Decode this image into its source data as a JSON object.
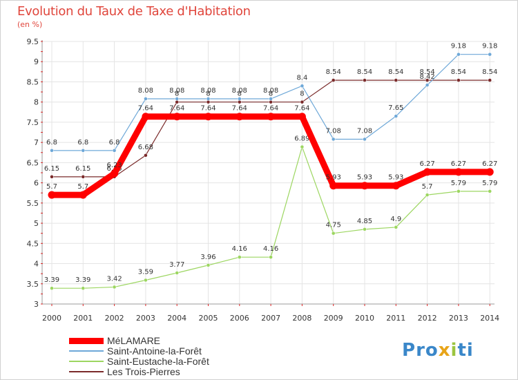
{
  "title": "Evolution du Taux de Taxe d'Habitation",
  "unit": "(en %)",
  "logo": {
    "letters": [
      "P",
      "r",
      "o",
      "x",
      "i",
      "t",
      "i"
    ],
    "colors": [
      "#3a87c9",
      "#3a87c9",
      "#3a87c9",
      "#e8a418",
      "#9cc540",
      "#3a87c9",
      "#3a87c9"
    ]
  },
  "chart_data": {
    "type": "line",
    "x": [
      "2000",
      "2001",
      "2002",
      "2003",
      "2004",
      "2005",
      "2006",
      "2007",
      "2008",
      "2009",
      "2010",
      "2011",
      "2012",
      "2013",
      "2014"
    ],
    "ylim": [
      3,
      9.5
    ],
    "yticks": [
      "3",
      "3.5",
      "4",
      "4.5",
      "5",
      "5.5",
      "6",
      "6.5",
      "7",
      "7.5",
      "8",
      "8.5",
      "9",
      "9.5"
    ],
    "grid": true,
    "legend_position": "bottom-left",
    "series": [
      {
        "name": "Les Trois-Pierres",
        "color": "#7a2a2a",
        "width": 1.2,
        "marker": 5,
        "values": [
          6.15,
          6.15,
          6.15,
          6.68,
          8,
          8,
          8,
          8,
          8,
          8.54,
          8.54,
          8.54,
          8.54,
          8.54,
          8.54
        ],
        "labels": [
          "6.15",
          "6.15",
          "6.15",
          "6.68",
          "8",
          "8",
          "8",
          "8",
          "8",
          "8.54",
          "8.54",
          "8.54",
          "8.54",
          "8.54",
          "8.54"
        ]
      },
      {
        "name": "Saint-Eustache-la-Forêt",
        "color": "#9cd660",
        "width": 1.2,
        "marker": 5,
        "values": [
          3.39,
          3.39,
          3.42,
          3.59,
          3.77,
          3.96,
          4.16,
          4.16,
          6.89,
          4.75,
          4.85,
          4.9,
          5.7,
          5.79,
          5.79
        ],
        "labels": [
          "3.39",
          "3.39",
          "3.42",
          "3.59",
          "3.77",
          "3.96",
          "4.16",
          "4.16",
          "6.89",
          "4.75",
          "4.85",
          "4.9",
          "5.7",
          "5.79",
          "5.79"
        ]
      },
      {
        "name": "Saint-Antoine-la-Forêt",
        "color": "#6ea8d8",
        "width": 1.2,
        "marker": 5,
        "values": [
          6.8,
          6.8,
          6.8,
          8.08,
          8.08,
          8.08,
          8.08,
          8.08,
          8.4,
          7.08,
          7.08,
          7.65,
          8.42,
          9.18,
          9.18
        ],
        "labels": [
          "6.8",
          "6.8",
          "6.8",
          "8.08",
          "8.08",
          "8.08",
          "8.08",
          "8.08",
          "8.4",
          "7.08",
          "7.08",
          "7.65",
          "8.42",
          "9.18",
          "9.18"
        ]
      },
      {
        "name": "MéLAMARE",
        "color": "#ff0000",
        "width": 9,
        "marker": 9,
        "values": [
          5.7,
          5.7,
          6.23,
          7.64,
          7.64,
          7.64,
          7.64,
          7.64,
          7.64,
          5.93,
          5.93,
          5.93,
          6.27,
          6.27,
          6.27
        ],
        "labels": [
          "5.7",
          "5.7",
          "6.23",
          "7.64",
          "7.64",
          "7.64",
          "7.64",
          "7.64",
          "7.64",
          "5.93",
          "5.93",
          "5.93",
          "6.27",
          "6.27",
          "6.27"
        ]
      }
    ]
  },
  "legend": [
    {
      "name": "MéLAMARE",
      "color": "#ff0000",
      "thickness": 9
    },
    {
      "name": "Saint-Antoine-la-Forêt",
      "color": "#6ea8d8",
      "thickness": 2
    },
    {
      "name": "Saint-Eustache-la-Forêt",
      "color": "#9cd660",
      "thickness": 2
    },
    {
      "name": "Les Trois-Pierres",
      "color": "#7a2a2a",
      "thickness": 2
    }
  ]
}
